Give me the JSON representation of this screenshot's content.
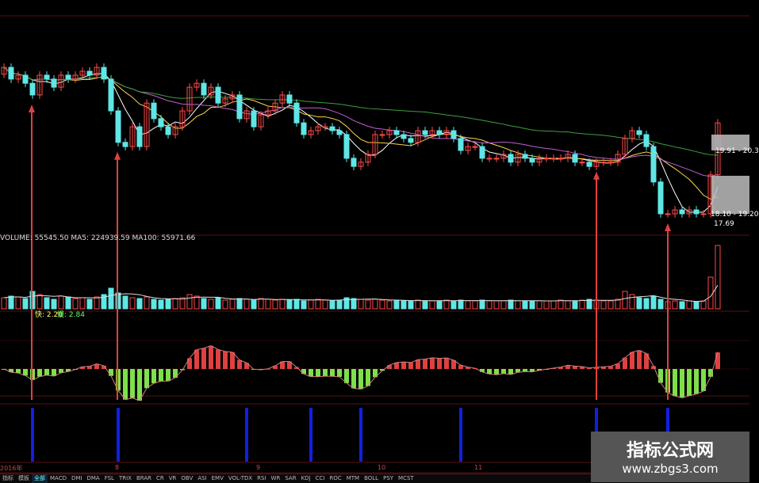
{
  "chart_data": {
    "type": "candlestick",
    "closes": [
      22.61,
      22.25,
      22.37,
      22.12,
      21.76,
      22.37,
      22.25,
      22.0,
      22.37,
      22.25,
      22.37,
      22.49,
      22.37,
      22.61,
      22.25,
      21.27,
      20.3,
      20.17,
      20.78,
      20.17,
      21.51,
      21.03,
      20.78,
      20.54,
      20.78,
      21.27,
      22.0,
      22.12,
      21.76,
      22.0,
      21.51,
      21.64,
      21.76,
      21.03,
      21.27,
      20.78,
      21.15,
      21.27,
      21.51,
      21.76,
      21.51,
      20.9,
      20.54,
      20.66,
      20.78,
      20.78,
      20.66,
      20.54,
      19.81,
      19.56,
      19.69,
      19.93,
      20.54,
      20.54,
      20.66,
      20.54,
      20.42,
      20.3,
      20.66,
      20.54,
      20.66,
      20.54,
      20.66,
      20.42,
      20.05,
      20.17,
      20.17,
      19.81,
      19.81,
      19.81,
      19.93,
      19.69,
      19.93,
      19.81,
      19.69,
      19.81,
      19.81,
      19.81,
      19.81,
      19.93,
      19.69,
      19.69,
      19.56,
      19.69,
      19.69,
      19.69,
      19.93,
      20.42,
      20.66,
      20.54,
      20.17,
      19.08,
      18.1,
      18.1,
      18.22,
      18.1,
      18.22,
      18.1,
      18.1,
      19.3,
      20.9
    ],
    "volumes": [
      14,
      16,
      15,
      13,
      22,
      18,
      14,
      12,
      16,
      15,
      13,
      14,
      12,
      15,
      18,
      26,
      20,
      16,
      14,
      13,
      15,
      12,
      11,
      12,
      13,
      14,
      18,
      16,
      13,
      12,
      14,
      11,
      12,
      13,
      12,
      11,
      13,
      12,
      11,
      12,
      11,
      12,
      10,
      11,
      12,
      11,
      10,
      11,
      14,
      13,
      12,
      11,
      12,
      11,
      10,
      11,
      10,
      10,
      11,
      10,
      10,
      10,
      11,
      10,
      11,
      10,
      10,
      11,
      10,
      10,
      10,
      11,
      10,
      10,
      10,
      10,
      10,
      10,
      11,
      10,
      10,
      11,
      12,
      11,
      10,
      10,
      12,
      22,
      18,
      14,
      13,
      16,
      12,
      9,
      10,
      9,
      10,
      9,
      10,
      40,
      80
    ],
    "buy_signal_indices": [
      4,
      16,
      83,
      93
    ],
    "marker_bar_indices": [
      4,
      16,
      34,
      43,
      50,
      64,
      83,
      93
    ],
    "price_labels": [
      "19.91 - 20.3",
      "18.10 - 19.20",
      "17.69"
    ],
    "x_tick_labels": [
      "2016年",
      "8",
      "9",
      "10",
      "11"
    ],
    "colors": {
      "up": "#ff4a4a",
      "down": "#5fe6e6",
      "ma_short": "#ffffff",
      "ma_mid": "#ffd24a",
      "ma_long1": "#c060d0",
      "ma_long2": "#3f9f3f",
      "signal": "#e04040",
      "marker": "#1020e0",
      "hist_up": "#e04040",
      "hist_down": "#7ee04a",
      "grid": "#5a1010"
    }
  },
  "volume_pane": {
    "header": "VOLUME: 55545.50  MA5: 224939.59  MA100: 55971.66"
  },
  "indicator_pane": {
    "fast": "快: 2.20",
    "slow": "慢: 2.84"
  },
  "tabs": [
    "指标",
    "模板",
    "全部",
    "MACD",
    "DMI",
    "DMA",
    "FSL",
    "TRIX",
    "BRAR",
    "CR",
    "VR",
    "OBV",
    "ASI",
    "EMV",
    "VOL-TDX",
    "RSI",
    "WR",
    "SAR",
    "KDJ",
    "CCI",
    "ROC",
    "MTM",
    "BOLL",
    "PSY",
    "MCST"
  ],
  "active_tab": 2,
  "watermark": {
    "title": "指标公式网",
    "url": "www.zbgs3.com"
  }
}
